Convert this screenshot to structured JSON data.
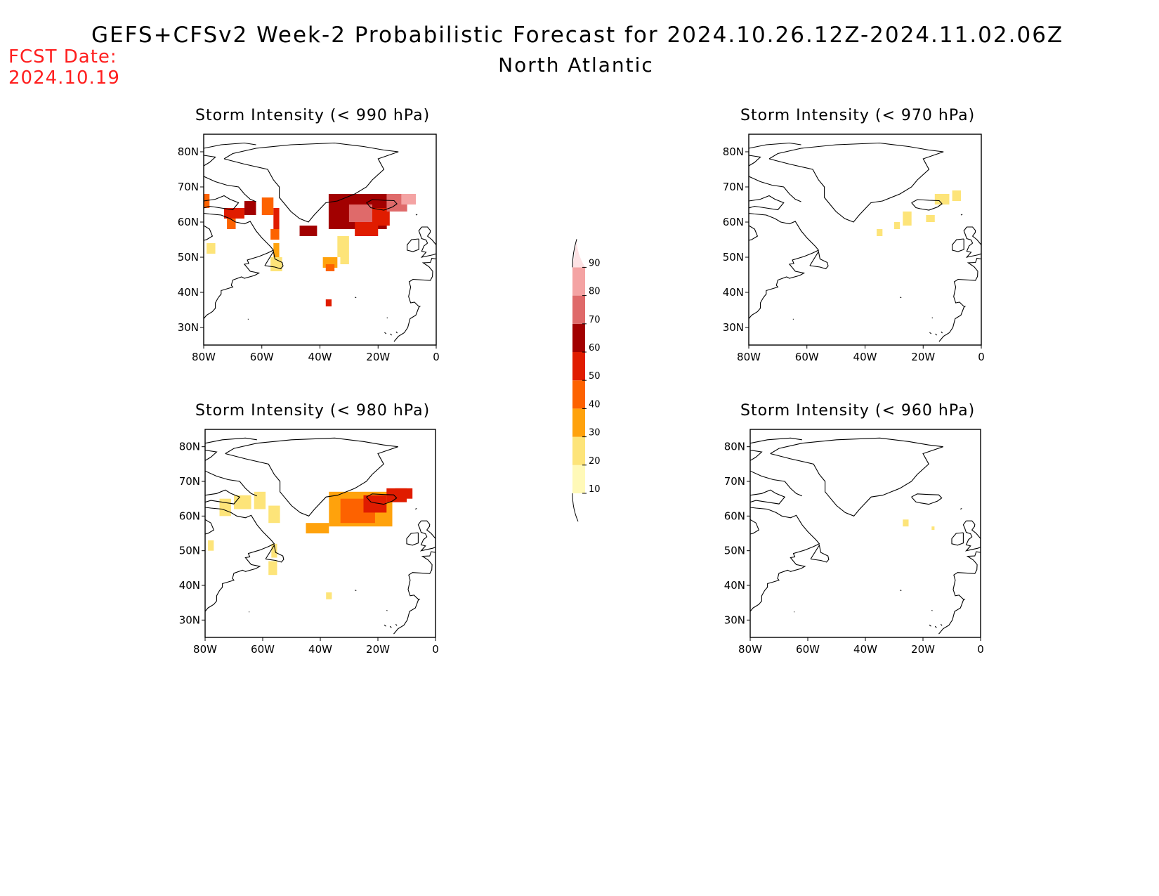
{
  "header": {
    "title": "GEFS+CFSv2 Week-2 Probabilistic Forecast for 2024.10.26.12Z-2024.11.02.06Z",
    "region": "North Atlantic",
    "fcst_label": "FCST Date:",
    "fcst_date": "2024.10.19"
  },
  "map_extent": {
    "lon": [
      -80,
      0
    ],
    "lat": [
      25,
      85
    ]
  },
  "axis": {
    "lat_ticks": [
      "30N",
      "40N",
      "50N",
      "60N",
      "70N",
      "80N"
    ],
    "lat_values": [
      30,
      40,
      50,
      60,
      70,
      80
    ],
    "lon_ticks": [
      "80W",
      "60W",
      "40W",
      "20W",
      "0"
    ],
    "lon_values": [
      -80,
      -60,
      -40,
      -20,
      0
    ]
  },
  "colorbar": {
    "levels": [
      "10",
      "20",
      "30",
      "40",
      "50",
      "60",
      "70",
      "80",
      "90"
    ],
    "colors": [
      "#fff9b8",
      "#fde479",
      "#ffa20c",
      "#fd6200",
      "#e01c00",
      "#a20000",
      "#df6a6a",
      "#f4a3a3",
      "#fde2e4"
    ]
  },
  "panels": [
    {
      "id": "p990",
      "title": "Storm Intensity (< 990 hPa)",
      "cells": [
        [
          -80,
          64,
          2,
          4,
          3
        ],
        [
          -73,
          61,
          7,
          3,
          4
        ],
        [
          -66,
          62,
          4,
          4,
          5
        ],
        [
          -60,
          62,
          4,
          5,
          3
        ],
        [
          -56,
          58,
          2,
          6,
          4
        ],
        [
          -57,
          55,
          3,
          3,
          3
        ],
        [
          -56,
          50,
          2,
          4,
          2
        ],
        [
          -57,
          46,
          4,
          4,
          1
        ],
        [
          -79,
          51,
          3,
          3,
          1
        ],
        [
          -72,
          58,
          3,
          3,
          3
        ],
        [
          -47,
          56,
          6,
          3,
          5
        ],
        [
          -37,
          58,
          20,
          10,
          5
        ],
        [
          -30,
          60,
          8,
          5,
          6
        ],
        [
          -28,
          56,
          8,
          4,
          4
        ],
        [
          -22,
          59,
          6,
          5,
          4
        ],
        [
          -17,
          63,
          7,
          5,
          6
        ],
        [
          -15,
          65,
          8,
          3,
          6
        ],
        [
          -12,
          65,
          5,
          3,
          7
        ],
        [
          -34,
          50,
          4,
          6,
          1
        ],
        [
          -39,
          47,
          5,
          3,
          2
        ],
        [
          -38,
          46,
          3,
          2,
          3
        ],
        [
          -33,
          48,
          3,
          2,
          1
        ],
        [
          -38,
          36,
          2,
          2,
          4
        ]
      ]
    },
    {
      "id": "p970",
      "title": "Storm Intensity (< 970 hPa)",
      "cells": [
        [
          -27,
          59,
          3,
          4,
          1
        ],
        [
          -30,
          58,
          2,
          2,
          1
        ],
        [
          -19,
          60,
          3,
          2,
          1
        ],
        [
          -36,
          56,
          2,
          2,
          1
        ],
        [
          -16,
          65,
          5,
          3,
          1
        ],
        [
          -10,
          66,
          3,
          3,
          1
        ]
      ]
    },
    {
      "id": "p980",
      "title": "Storm Intensity (< 980 hPa)",
      "cells": [
        [
          -75,
          60,
          4,
          5,
          1
        ],
        [
          -70,
          62,
          6,
          4,
          1
        ],
        [
          -63,
          62,
          4,
          5,
          1
        ],
        [
          -58,
          58,
          4,
          5,
          1
        ],
        [
          -45,
          55,
          8,
          3,
          2
        ],
        [
          -37,
          57,
          22,
          10,
          2
        ],
        [
          -33,
          58,
          12,
          7,
          3
        ],
        [
          -25,
          61,
          8,
          5,
          4
        ],
        [
          -17,
          64,
          7,
          4,
          4
        ],
        [
          -14,
          65,
          6,
          3,
          4
        ],
        [
          -58,
          43,
          3,
          4,
          1
        ],
        [
          -57,
          48,
          2,
          4,
          1
        ],
        [
          -79,
          50,
          2,
          3,
          1
        ],
        [
          -38,
          36,
          2,
          2,
          1
        ]
      ]
    },
    {
      "id": "p960",
      "title": "Storm Intensity (< 960 hPa)",
      "cells": [
        [
          -27,
          57,
          2,
          2,
          1
        ],
        [
          -17,
          56,
          1,
          1,
          1
        ]
      ]
    }
  ]
}
